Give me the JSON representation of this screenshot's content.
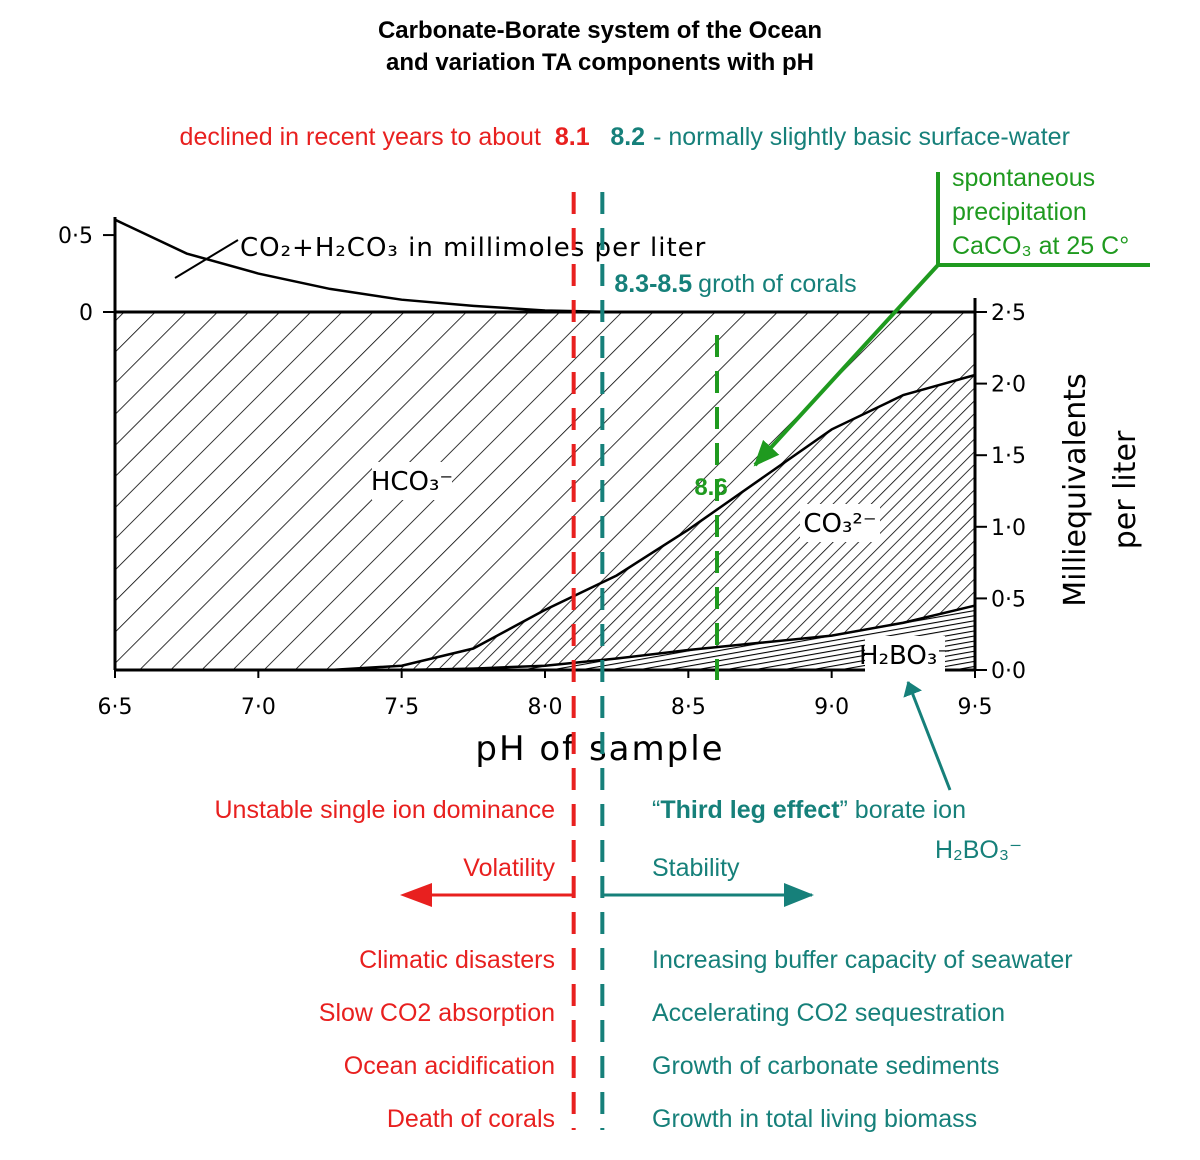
{
  "title": [
    "Carbonate-Borate system of the Ocean",
    "and variation TA components with pH"
  ],
  "chart_data": {
    "type": "area",
    "stacked": true,
    "x": [
      6.5,
      6.75,
      7.0,
      7.25,
      7.5,
      7.75,
      8.0,
      8.25,
      8.5,
      8.75,
      9.0,
      9.25,
      9.5
    ],
    "xlim": [
      6.5,
      9.5
    ],
    "xticks": [
      {
        "value": 6.5,
        "label": "6·5"
      },
      {
        "value": 7.0,
        "label": "7·0"
      },
      {
        "value": 7.5,
        "label": "7·5"
      },
      {
        "value": 8.0,
        "label": "8·0"
      },
      {
        "value": 8.5,
        "label": "8·5"
      },
      {
        "value": 9.0,
        "label": "9·0"
      },
      {
        "value": 9.5,
        "label": "9·5"
      }
    ],
    "xlabel": "pH of sample",
    "ylim": [
      0,
      2.5
    ],
    "yticks": [
      {
        "value": 0,
        "label": "0·0"
      },
      {
        "value": 0.5,
        "label": "0·5"
      },
      {
        "value": 1.0,
        "label": "1·0"
      },
      {
        "value": 1.5,
        "label": "1·5"
      },
      {
        "value": 2.0,
        "label": "2·0"
      },
      {
        "value": 2.5,
        "label": "2·5"
      }
    ],
    "ylabel": [
      "Milliequivalents",
      "per liter"
    ],
    "y2lim": [
      0,
      0.65
    ],
    "y2ticks": [
      {
        "value": 0.5,
        "label": "0·5"
      },
      0
    ],
    "series": [
      {
        "name": "H₂BO₃⁻",
        "color": "#000000",
        "values": [
          0,
          0,
          0,
          0,
          0,
          0.01,
          0.03,
          0.08,
          0.14,
          0.19,
          0.24,
          0.33,
          0.45
        ]
      },
      {
        "name": "CO₃²⁻",
        "color": "#000000",
        "values": [
          0,
          0,
          0,
          0,
          0.03,
          0.14,
          0.39,
          0.58,
          0.84,
          1.14,
          1.44,
          1.59,
          1.61
        ]
      },
      {
        "name": "HCO₃⁻",
        "color": "#000000",
        "values": [
          2.5,
          2.5,
          2.5,
          2.5,
          2.47,
          2.35,
          2.08,
          1.84,
          1.52,
          1.17,
          0.82,
          0.58,
          0.44
        ]
      },
      {
        "name": "CO₂+H₂CO₃ in millimoles per liter",
        "color": "#000000",
        "axis": "y2",
        "values": [
          0.6,
          0.38,
          0.25,
          0.15,
          0.08,
          0.04,
          0.01,
          0,
          0,
          0,
          0,
          0,
          0
        ]
      }
    ],
    "markers": [
      {
        "value": 8.1,
        "text": "declined in recent years to about",
        "color": "#e8201f"
      },
      {
        "value": 8.2,
        "text": "- normally slightly basic surface-water",
        "color": "#16807a"
      },
      {
        "value": 8.6,
        "text": [
          "spontaneous",
          "precipitation",
          "CaCO₃ at 25 C°"
        ],
        "color": "#1f9a1f"
      }
    ],
    "coral_note": {
      "range": "8.3-8.5",
      "text": "groth of corals"
    }
  },
  "lower": {
    "left_heading": "Unstable single ion dominance",
    "right_heading": [
      "“",
      "Third leg effect",
      "” borate ion"
    ],
    "borate_ion": "H₂BO₃⁻",
    "left_arrow": "Volatility",
    "right_arrow": "Stability",
    "left_items": [
      "Climatic disasters",
      "Slow CO2 absorption",
      "Ocean acidification",
      "Death of corals"
    ],
    "right_items": [
      "Increasing buffer capacity of seawater",
      "Accelerating CO2 sequestration",
      "Growth of carbonate sediments",
      "Growth in total living biomass"
    ]
  }
}
